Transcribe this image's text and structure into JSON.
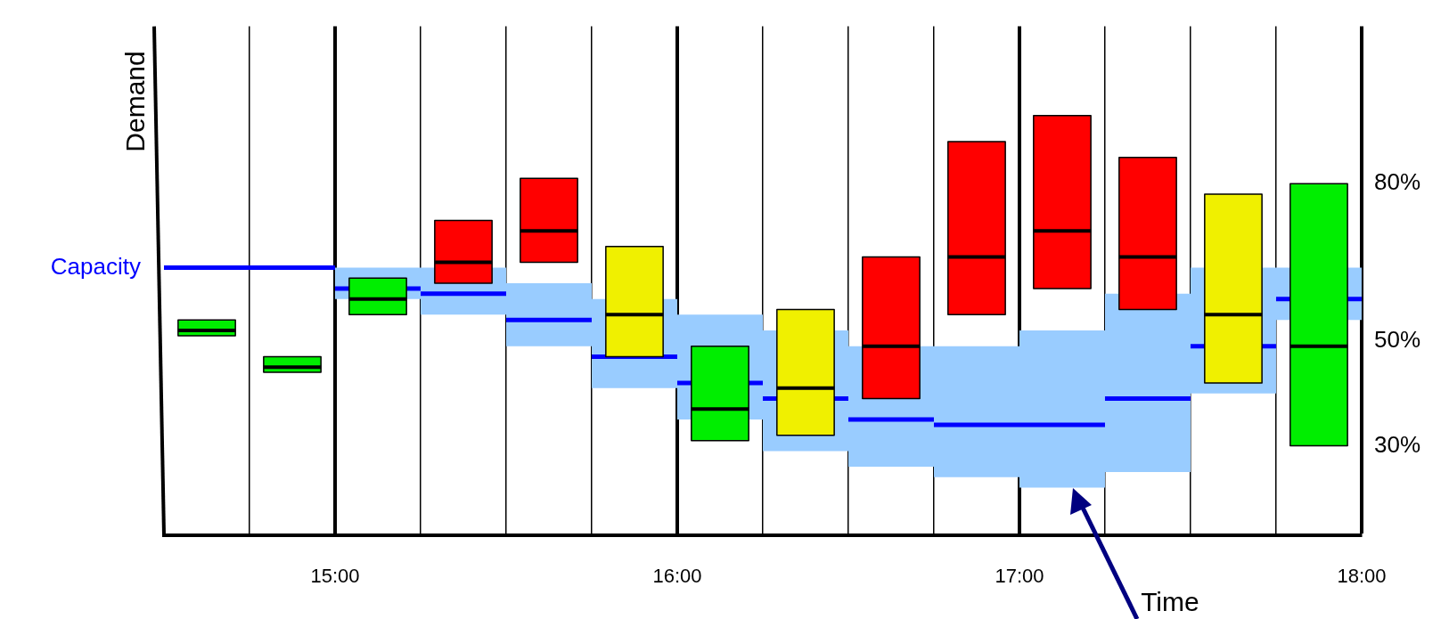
{
  "chart_data": {
    "type": "box",
    "xlabel": "Time",
    "ylabel": "Demand",
    "grid": "x",
    "x": [
      14.625,
      14.875,
      15.125,
      15.375,
      15.625,
      15.875,
      16.125,
      16.375,
      16.625,
      16.875,
      17.125,
      17.375,
      17.625,
      17.875
    ],
    "xlim": [
      14.5,
      18
    ],
    "xticks": [
      {
        "value": 14.75,
        "label": null
      },
      {
        "value": 15,
        "label": "15:00"
      },
      {
        "value": 15.25,
        "label": null
      },
      {
        "value": 15.5,
        "label": null
      },
      {
        "value": 15.75,
        "label": null
      },
      {
        "value": 16,
        "label": "16:00"
      },
      {
        "value": 16.25,
        "label": null
      },
      {
        "value": 16.5,
        "label": null
      },
      {
        "value": 16.75,
        "label": null
      },
      {
        "value": 17,
        "label": "17:00"
      },
      {
        "value": 17.25,
        "label": null
      },
      {
        "value": 17.5,
        "label": null
      },
      {
        "value": 17.75,
        "label": null
      },
      {
        "value": 18,
        "label": "18:00"
      }
    ],
    "ylim": [
      13,
      110
    ],
    "yticks": [
      {
        "value": 30,
        "label": "30%"
      },
      {
        "value": 50,
        "label": "50%"
      },
      {
        "value": 80,
        "label": "80%"
      }
    ],
    "series": [
      {
        "type": "step",
        "name": "Capacity",
        "color": "#0000ff",
        "x": [
          14.5,
          14.75,
          15,
          15.25,
          15.5,
          15.75,
          16,
          16.25,
          16.5,
          16.75,
          17,
          17.25,
          17.5,
          17.75,
          18
        ],
        "values": [
          64,
          64,
          60,
          59,
          54,
          47,
          42,
          39,
          35,
          34,
          34,
          39,
          49,
          58,
          58
        ],
        "lower": [
          null,
          null,
          58,
          55,
          49,
          41,
          35,
          29,
          26,
          24,
          22,
          25,
          40,
          54,
          54
        ],
        "upper": [
          null,
          null,
          64,
          64,
          61,
          58,
          55,
          52,
          49,
          49,
          52,
          59,
          64,
          64,
          64
        ]
      },
      {
        "colors": [
          "#00ee00",
          "#00ee00",
          "#00ee00",
          "#ff0000",
          "#ff0000",
          "#f0f000",
          "#00ee00",
          "#f0f000",
          "#ff0000",
          "#ff0000",
          "#ff0000",
          "#ff0000",
          "#f0f000",
          "#00ee00"
        ],
        "boxes": [
          {
            "low": 51,
            "q1": 51,
            "median": 52,
            "q3": 54,
            "high": 54
          },
          {
            "low": 44,
            "q1": 44,
            "median": 45,
            "q3": 47,
            "high": 47
          },
          {
            "low": 55,
            "q1": 55,
            "median": 58,
            "q3": 62,
            "high": 62
          },
          {
            "low": 61,
            "q1": 61,
            "median": 65,
            "q3": 73,
            "high": 73
          },
          {
            "low": 65,
            "q1": 65,
            "median": 71,
            "q3": 81,
            "high": 81
          },
          {
            "low": 47,
            "q1": 47,
            "median": 55,
            "q3": 68,
            "high": 68
          },
          {
            "low": 31,
            "q1": 31,
            "median": 37,
            "q3": 49,
            "high": 49
          },
          {
            "low": 32,
            "q1": 32,
            "median": 41,
            "q3": 56,
            "high": 56
          },
          {
            "low": 39,
            "q1": 39,
            "median": 49,
            "q3": 66,
            "high": 66
          },
          {
            "low": 55,
            "q1": 55,
            "median": 66,
            "q3": 88,
            "high": 88
          },
          {
            "low": 60,
            "q1": 60,
            "median": 71,
            "q3": 93,
            "high": 93
          },
          {
            "low": 56,
            "q1": 56,
            "median": 66,
            "q3": 85,
            "high": 85
          },
          {
            "low": 42,
            "q1": 42,
            "median": 55,
            "q3": 78,
            "high": 78
          },
          {
            "low": 30,
            "q1": 30,
            "median": 49,
            "q3": 80,
            "high": 80
          }
        ]
      }
    ]
  }
}
